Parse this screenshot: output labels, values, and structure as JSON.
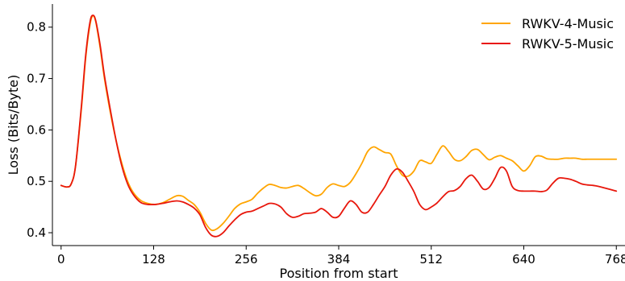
{
  "chart_data": {
    "type": "line",
    "xlabel": "Position from start",
    "ylabel": "Loss (Bits/Byte)",
    "xlim": [
      -12,
      780
    ],
    "ylim": [
      0.375,
      0.845
    ],
    "xticks": [
      0,
      128,
      256,
      384,
      512,
      640,
      768
    ],
    "yticks": [
      0.4,
      0.5,
      0.6,
      0.7,
      0.8
    ],
    "legend_position": "top-right",
    "grid": false,
    "series": [
      {
        "name": "RWKV-4-Music",
        "color": "#FFA500",
        "x": [
          0,
          8,
          14,
          20,
          28,
          34,
          40,
          44,
          48,
          54,
          60,
          68,
          76,
          84,
          92,
          100,
          110,
          120,
          130,
          140,
          150,
          160,
          168,
          176,
          184,
          192,
          200,
          208,
          216,
          224,
          232,
          240,
          248,
          256,
          264,
          272,
          280,
          288,
          296,
          304,
          312,
          320,
          328,
          336,
          344,
          352,
          360,
          368,
          376,
          384,
          392,
          400,
          408,
          416,
          424,
          432,
          440,
          448,
          456,
          464,
          472,
          480,
          488,
          496,
          504,
          512,
          520,
          528,
          536,
          544,
          552,
          560,
          568,
          576,
          584,
          592,
          600,
          608,
          616,
          624,
          632,
          640,
          648,
          656,
          664,
          672,
          680,
          688,
          696,
          704,
          712,
          720,
          728,
          736,
          744,
          752,
          760,
          768
        ],
        "y": [
          0.492,
          0.489,
          0.495,
          0.53,
          0.64,
          0.74,
          0.805,
          0.822,
          0.81,
          0.76,
          0.7,
          0.635,
          0.58,
          0.535,
          0.5,
          0.478,
          0.463,
          0.457,
          0.455,
          0.458,
          0.465,
          0.472,
          0.471,
          0.463,
          0.455,
          0.44,
          0.418,
          0.405,
          0.408,
          0.418,
          0.432,
          0.447,
          0.456,
          0.46,
          0.465,
          0.477,
          0.487,
          0.494,
          0.492,
          0.488,
          0.487,
          0.49,
          0.492,
          0.486,
          0.478,
          0.472,
          0.475,
          0.488,
          0.495,
          0.492,
          0.49,
          0.498,
          0.515,
          0.535,
          0.558,
          0.567,
          0.562,
          0.556,
          0.553,
          0.53,
          0.512,
          0.51,
          0.52,
          0.54,
          0.538,
          0.535,
          0.553,
          0.569,
          0.558,
          0.543,
          0.54,
          0.548,
          0.56,
          0.562,
          0.552,
          0.542,
          0.547,
          0.55,
          0.545,
          0.54,
          0.53,
          0.52,
          0.53,
          0.548,
          0.549,
          0.544,
          0.543,
          0.543,
          0.545,
          0.545,
          0.545,
          0.543,
          0.543,
          0.543,
          0.543,
          0.543,
          0.543,
          0.543
        ]
      },
      {
        "name": "RWKV-5-Music",
        "color": "#E8170C",
        "x": [
          0,
          8,
          14,
          20,
          28,
          34,
          40,
          44,
          48,
          54,
          60,
          68,
          76,
          84,
          92,
          100,
          110,
          120,
          130,
          140,
          150,
          160,
          168,
          176,
          184,
          192,
          200,
          208,
          216,
          224,
          232,
          240,
          248,
          256,
          264,
          272,
          280,
          288,
          296,
          304,
          312,
          320,
          328,
          336,
          344,
          352,
          360,
          368,
          376,
          384,
          392,
          400,
          408,
          416,
          424,
          432,
          440,
          448,
          456,
          464,
          472,
          480,
          488,
          496,
          504,
          512,
          520,
          528,
          536,
          544,
          552,
          560,
          568,
          576,
          584,
          592,
          600,
          608,
          616,
          624,
          632,
          640,
          648,
          656,
          664,
          672,
          680,
          688,
          696,
          704,
          712,
          720,
          728,
          736,
          744,
          752,
          760,
          768
        ],
        "y": [
          0.492,
          0.489,
          0.495,
          0.53,
          0.645,
          0.745,
          0.81,
          0.823,
          0.812,
          0.765,
          0.705,
          0.64,
          0.58,
          0.53,
          0.495,
          0.474,
          0.459,
          0.455,
          0.455,
          0.457,
          0.46,
          0.462,
          0.46,
          0.455,
          0.448,
          0.435,
          0.41,
          0.395,
          0.393,
          0.4,
          0.413,
          0.425,
          0.435,
          0.44,
          0.442,
          0.447,
          0.452,
          0.457,
          0.456,
          0.45,
          0.437,
          0.43,
          0.432,
          0.437,
          0.438,
          0.44,
          0.447,
          0.44,
          0.43,
          0.432,
          0.448,
          0.462,
          0.455,
          0.44,
          0.44,
          0.455,
          0.473,
          0.49,
          0.512,
          0.524,
          0.518,
          0.5,
          0.48,
          0.455,
          0.445,
          0.45,
          0.458,
          0.47,
          0.48,
          0.482,
          0.49,
          0.505,
          0.512,
          0.5,
          0.485,
          0.488,
          0.506,
          0.527,
          0.52,
          0.49,
          0.482,
          0.481,
          0.481,
          0.481,
          0.48,
          0.483,
          0.496,
          0.506,
          0.506,
          0.504,
          0.5,
          0.495,
          0.493,
          0.492,
          0.49,
          0.487,
          0.484,
          0.481
        ]
      }
    ]
  }
}
